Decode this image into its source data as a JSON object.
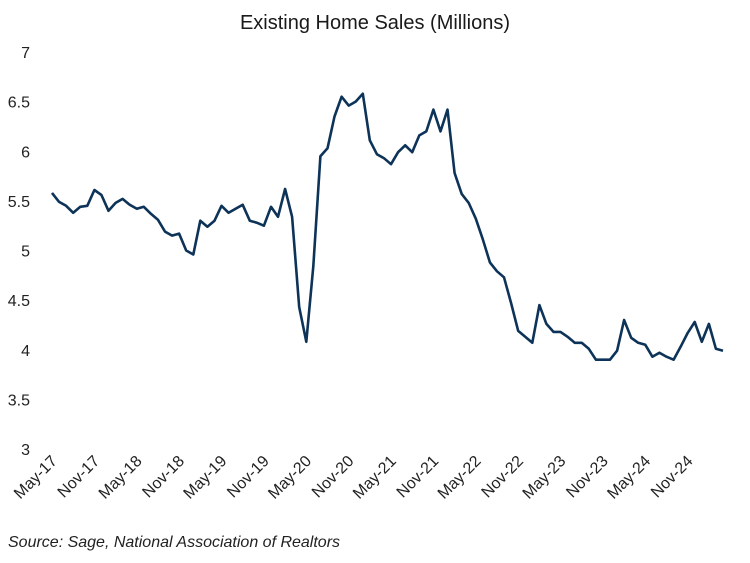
{
  "chart_data": {
    "type": "line",
    "title": "Existing Home Sales (Millions)",
    "xlabel": "",
    "ylabel": "",
    "ylim": [
      3,
      7
    ],
    "yticks": [
      "3",
      "3.5",
      "4",
      "4.5",
      "5",
      "5.5",
      "6",
      "6.5",
      "7"
    ],
    "grid": false,
    "x_start": "May-17",
    "x_end": "Apr-25",
    "xtick_labels": [
      "May-17",
      "Nov-17",
      "May-18",
      "Nov-18",
      "May-19",
      "Nov-19",
      "May-20",
      "Nov-20",
      "May-21",
      "Nov-21",
      "May-22",
      "Nov-22",
      "May-23",
      "Nov-23",
      "May-24",
      "Nov-24"
    ],
    "series": [
      {
        "name": "Existing Home Sales",
        "color": "#0d3358",
        "values": [
          5.58,
          5.49,
          5.45,
          5.38,
          5.44,
          5.45,
          5.61,
          5.56,
          5.4,
          5.48,
          5.52,
          5.46,
          5.42,
          5.44,
          5.37,
          5.31,
          5.19,
          5.15,
          5.17,
          5.0,
          4.96,
          5.3,
          5.24,
          5.3,
          5.45,
          5.38,
          5.42,
          5.46,
          5.3,
          5.28,
          5.25,
          5.44,
          5.34,
          5.62,
          5.34,
          4.43,
          4.08,
          4.84,
          5.95,
          6.03,
          6.35,
          6.55,
          6.46,
          6.5,
          6.58,
          6.11,
          5.97,
          5.93,
          5.87,
          5.99,
          6.06,
          5.99,
          6.16,
          6.2,
          6.42,
          6.2,
          6.42,
          5.78,
          5.57,
          5.48,
          5.32,
          5.11,
          4.88,
          4.79,
          4.73,
          4.47,
          4.19,
          4.13,
          4.07,
          4.45,
          4.26,
          4.18,
          4.18,
          4.13,
          4.07,
          4.07,
          4.01,
          3.9,
          3.9,
          3.9,
          3.99,
          4.3,
          4.12,
          4.07,
          4.05,
          3.93,
          3.97,
          3.93,
          3.9,
          4.03,
          4.17,
          4.28,
          4.08,
          4.26,
          4.01,
          3.99
        ]
      }
    ],
    "source": "Source: Sage, National Association of Realtors"
  }
}
